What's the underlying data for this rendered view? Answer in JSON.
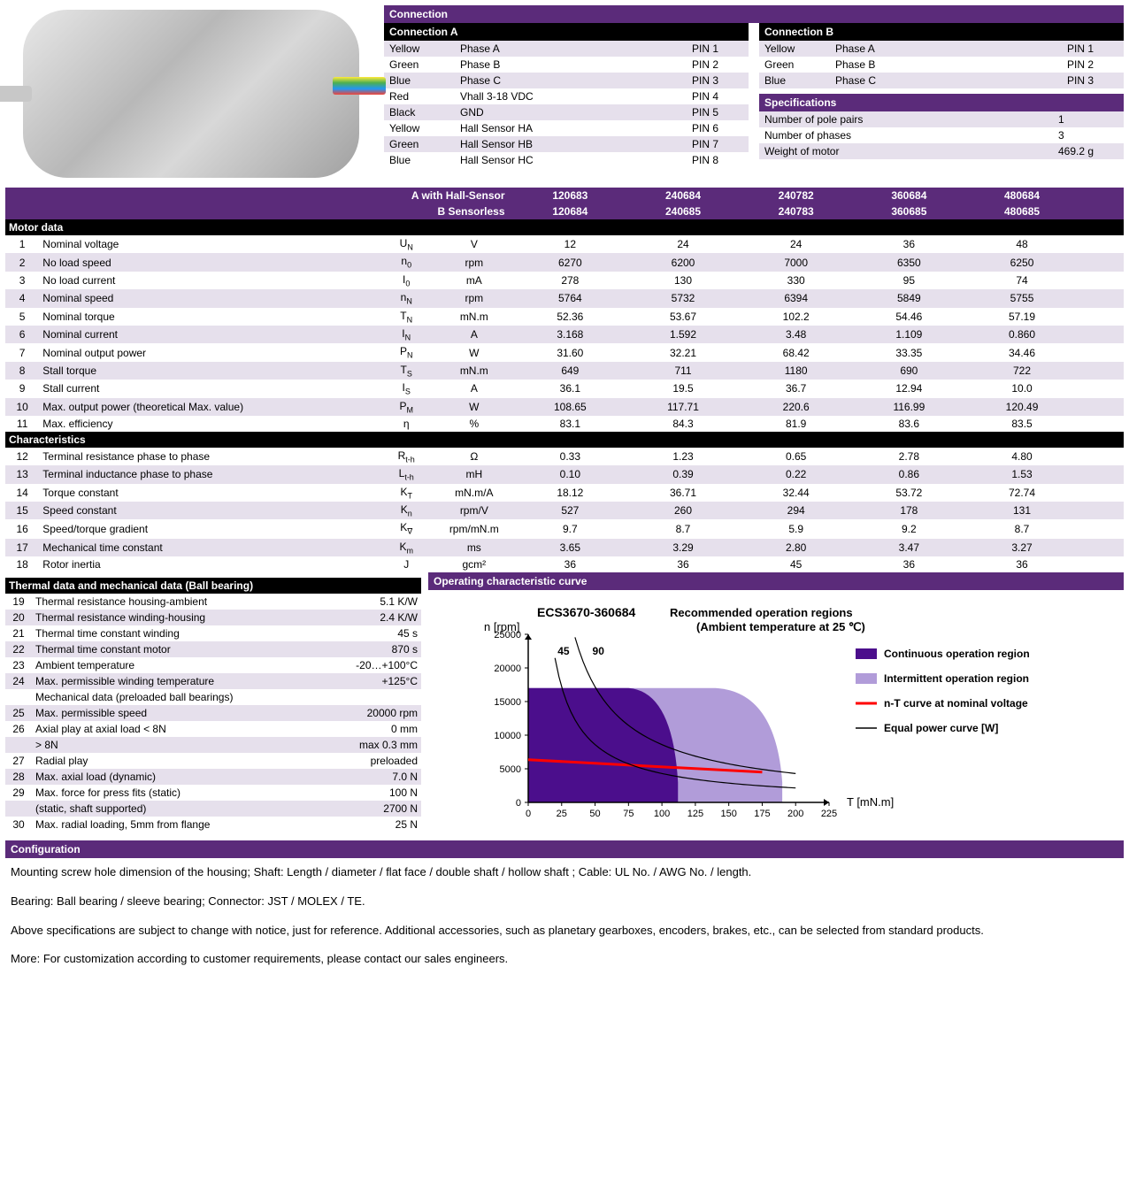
{
  "connection": {
    "title": "Connection",
    "colA_title": "Connection A",
    "colB_title": "Connection B",
    "A": [
      {
        "color": "Yellow",
        "label": "Phase A",
        "pin": "PIN 1"
      },
      {
        "color": "Green",
        "label": "Phase B",
        "pin": "PIN 2"
      },
      {
        "color": "Blue",
        "label": "Phase C",
        "pin": "PIN 3"
      },
      {
        "color": "Red",
        "label": "Vhall 3-18 VDC",
        "pin": "PIN 4"
      },
      {
        "color": "Black",
        "label": "GND",
        "pin": "PIN 5"
      },
      {
        "color": "Yellow",
        "label": "Hall Sensor HA",
        "pin": "PIN 6"
      },
      {
        "color": "Green",
        "label": "Hall Sensor HB",
        "pin": "PIN 7"
      },
      {
        "color": "Blue",
        "label": "Hall Sensor HC",
        "pin": "PIN 8"
      }
    ],
    "B": [
      {
        "color": "Yellow",
        "label": "Phase A",
        "pin": "PIN 1"
      },
      {
        "color": "Green",
        "label": "Phase B",
        "pin": "PIN 2"
      },
      {
        "color": "Blue",
        "label": "Phase C",
        "pin": "PIN 3"
      }
    ]
  },
  "specs": {
    "title": "Specifications",
    "rows": [
      {
        "k": "Number of pole pairs",
        "v": "1"
      },
      {
        "k": "Number of phases",
        "v": "3"
      },
      {
        "k": "Weight of motor",
        "v": "469.2 g"
      }
    ]
  },
  "header": {
    "aLabel": "A with Hall-Sensor",
    "bLabel": "B Sensorless",
    "aCodes": [
      "120683",
      "240684",
      "240782",
      "360684",
      "480684"
    ],
    "bCodes": [
      "120684",
      "240685",
      "240783",
      "360685",
      "480685"
    ]
  },
  "sections": {
    "motor": "Motor data",
    "char": "Characteristics",
    "thermal": "Thermal data and mechanical data (Ball bearing)",
    "curve": "Operating characteristic curve",
    "config": "Configuration"
  },
  "motorData": [
    {
      "n": "1",
      "k": "Nominal voltage",
      "s": "U",
      "sub": "N",
      "u": "V",
      "v": [
        "12",
        "24",
        "24",
        "36",
        "48"
      ]
    },
    {
      "n": "2",
      "k": "No load speed",
      "s": "n",
      "sub": "0",
      "u": "rpm",
      "v": [
        "6270",
        "6200",
        "7000",
        "6350",
        "6250"
      ]
    },
    {
      "n": "3",
      "k": "No load current",
      "s": "I",
      "sub": "0",
      "u": "mA",
      "v": [
        "278",
        "130",
        "330",
        "95",
        "74"
      ]
    },
    {
      "n": "4",
      "k": "Nominal speed",
      "s": "n",
      "sub": "N",
      "u": "rpm",
      "v": [
        "5764",
        "5732",
        "6394",
        "5849",
        "5755"
      ]
    },
    {
      "n": "5",
      "k": "Nominal torque",
      "s": "T",
      "sub": "N",
      "u": "mN.m",
      "v": [
        "52.36",
        "53.67",
        "102.2",
        "54.46",
        "57.19"
      ]
    },
    {
      "n": "6",
      "k": "Nominal current",
      "s": "I",
      "sub": "N",
      "u": "A",
      "v": [
        "3.168",
        "1.592",
        "3.48",
        "1.109",
        "0.860"
      ]
    },
    {
      "n": "7",
      "k": "Nominal output power",
      "s": "P",
      "sub": "N",
      "u": "W",
      "v": [
        "31.60",
        "32.21",
        "68.42",
        "33.35",
        "34.46"
      ]
    },
    {
      "n": "8",
      "k": "Stall torque",
      "s": "T",
      "sub": "S",
      "u": "mN.m",
      "v": [
        "649",
        "711",
        "1180",
        "690",
        "722"
      ]
    },
    {
      "n": "9",
      "k": "Stall current",
      "s": "I",
      "sub": "S",
      "u": "A",
      "v": [
        "36.1",
        "19.5",
        "36.7",
        "12.94",
        "10.0"
      ]
    },
    {
      "n": "10",
      "k": "Max. output power (theoretical Max. value)",
      "s": "P",
      "sub": "M",
      "u": "W",
      "v": [
        "108.65",
        "117.71",
        "220.6",
        "116.99",
        "120.49"
      ]
    },
    {
      "n": "11",
      "k": "Max. efficiency",
      "s": "η",
      "sub": "",
      "u": "%",
      "v": [
        "83.1",
        "84.3",
        "81.9",
        "83.6",
        "83.5"
      ]
    }
  ],
  "charData": [
    {
      "n": "12",
      "k": "Terminal resistance phase to phase",
      "s": "R",
      "sub": "t-h",
      "u": "Ω",
      "v": [
        "0.33",
        "1.23",
        "0.65",
        "2.78",
        "4.80"
      ]
    },
    {
      "n": "13",
      "k": "Terminal inductance phase to phase",
      "s": "L",
      "sub": "t-h",
      "u": "mH",
      "v": [
        "0.10",
        "0.39",
        "0.22",
        "0.86",
        "1.53"
      ]
    },
    {
      "n": "14",
      "k": "Torque constant",
      "s": "K",
      "sub": "T",
      "u": "mN.m/A",
      "v": [
        "18.12",
        "36.71",
        "32.44",
        "53.72",
        "72.74"
      ]
    },
    {
      "n": "15",
      "k": "Speed constant",
      "s": "K",
      "sub": "n",
      "u": "rpm/V",
      "v": [
        "527",
        "260",
        "294",
        "178",
        "131"
      ]
    },
    {
      "n": "16",
      "k": "Speed/torque gradient",
      "s": "K",
      "sub": "∇",
      "u": "rpm/mN.m",
      "v": [
        "9.7",
        "8.7",
        "5.9",
        "9.2",
        "8.7"
      ]
    },
    {
      "n": "17",
      "k": "Mechanical time constant",
      "s": "K",
      "sub": "m",
      "u": "ms",
      "v": [
        "3.65",
        "3.29",
        "2.80",
        "3.47",
        "3.27"
      ]
    },
    {
      "n": "18",
      "k": "Rotor inertia",
      "s": "J",
      "sub": "",
      "u": "gcm²",
      "v": [
        "36",
        "36",
        "45",
        "36",
        "36"
      ]
    }
  ],
  "thermalData": [
    {
      "n": "19",
      "k": "Thermal resistance housing-ambient",
      "v": "5.1 K/W"
    },
    {
      "n": "20",
      "k": "Thermal resistance winding-housing",
      "v": "2.4 K/W"
    },
    {
      "n": "21",
      "k": "Thermal time constant winding",
      "v": "45 s"
    },
    {
      "n": "22",
      "k": "Thermal time constant motor",
      "v": "870 s"
    },
    {
      "n": "23",
      "k": "Ambient temperature",
      "v": "-20…+100°C"
    },
    {
      "n": "24",
      "k": "Max. permissible winding temperature",
      "v": "+125°C"
    },
    {
      "n": "",
      "k": "Mechanical data (preloaded ball bearings)",
      "v": ""
    },
    {
      "n": "25",
      "k": "Max. permissible speed",
      "v": "20000 rpm"
    },
    {
      "n": "26",
      "k": "Axial play at axial load < 8N",
      "v": "0 mm"
    },
    {
      "n": "",
      "k": "                                          > 8N",
      "v": "max 0.3 mm"
    },
    {
      "n": "27",
      "k": "Radial play",
      "v": "preloaded"
    },
    {
      "n": "28",
      "k": "Max. axial load (dynamic)",
      "v": "7.0 N"
    },
    {
      "n": "29",
      "k": "Max. force for press fits (static)",
      "v": "100 N"
    },
    {
      "n": "",
      "k": "(static, shaft supported)",
      "v": "2700 N"
    },
    {
      "n": "30",
      "k": "Max. radial loading, 5mm from flange",
      "v": "25 N"
    }
  ],
  "chart": {
    "model": "ECS3670-360684",
    "subtitle": "Recommended operation  regions",
    "subtitle2": "(Ambient temperature at 25 ℃)",
    "ylabel": "n [rpm]",
    "xlabel": "T [mN.m]",
    "yticks": [
      "0",
      "5000",
      "10000",
      "15000",
      "20000",
      "25000"
    ],
    "xticks": [
      "0",
      "25",
      "50",
      "75",
      "100",
      "125",
      "150",
      "175",
      "200",
      "225"
    ],
    "legend": [
      {
        "label": "Continuous operation region",
        "color": "#4b0e8c",
        "type": "fill"
      },
      {
        "label": "Intermittent operation region",
        "color": "#b19cd9",
        "type": "fill"
      },
      {
        "label": "n-T curve at nominal voltage",
        "color": "#ff0000",
        "type": "line"
      },
      {
        "label": "Equal power curve [W]",
        "color": "#000000",
        "type": "line"
      }
    ],
    "curve_labels": [
      "45",
      "90"
    ],
    "colors": {
      "continuous": "#4b0e8c",
      "intermittent": "#b19cd9",
      "nt": "#ff0000",
      "power": "#000000",
      "bg": "#ffffff"
    }
  },
  "config": {
    "p1": "Mounting screw hole dimension of the housing; Shaft: Length / diameter / flat face / double shaft / hollow shaft ; Cable: UL No. / AWG No. / length.",
    "p2": "Bearing: Ball bearing / sleeve bearing; Connector: JST / MOLEX / TE.",
    "p3": "Above specifications are subject to change with notice, just for reference. Additional accessories, such as planetary gearboxes, encoders, brakes, etc., can be selected from standard products.",
    "p4": "More: For customization according to customer requirements, please contact our sales engineers."
  }
}
